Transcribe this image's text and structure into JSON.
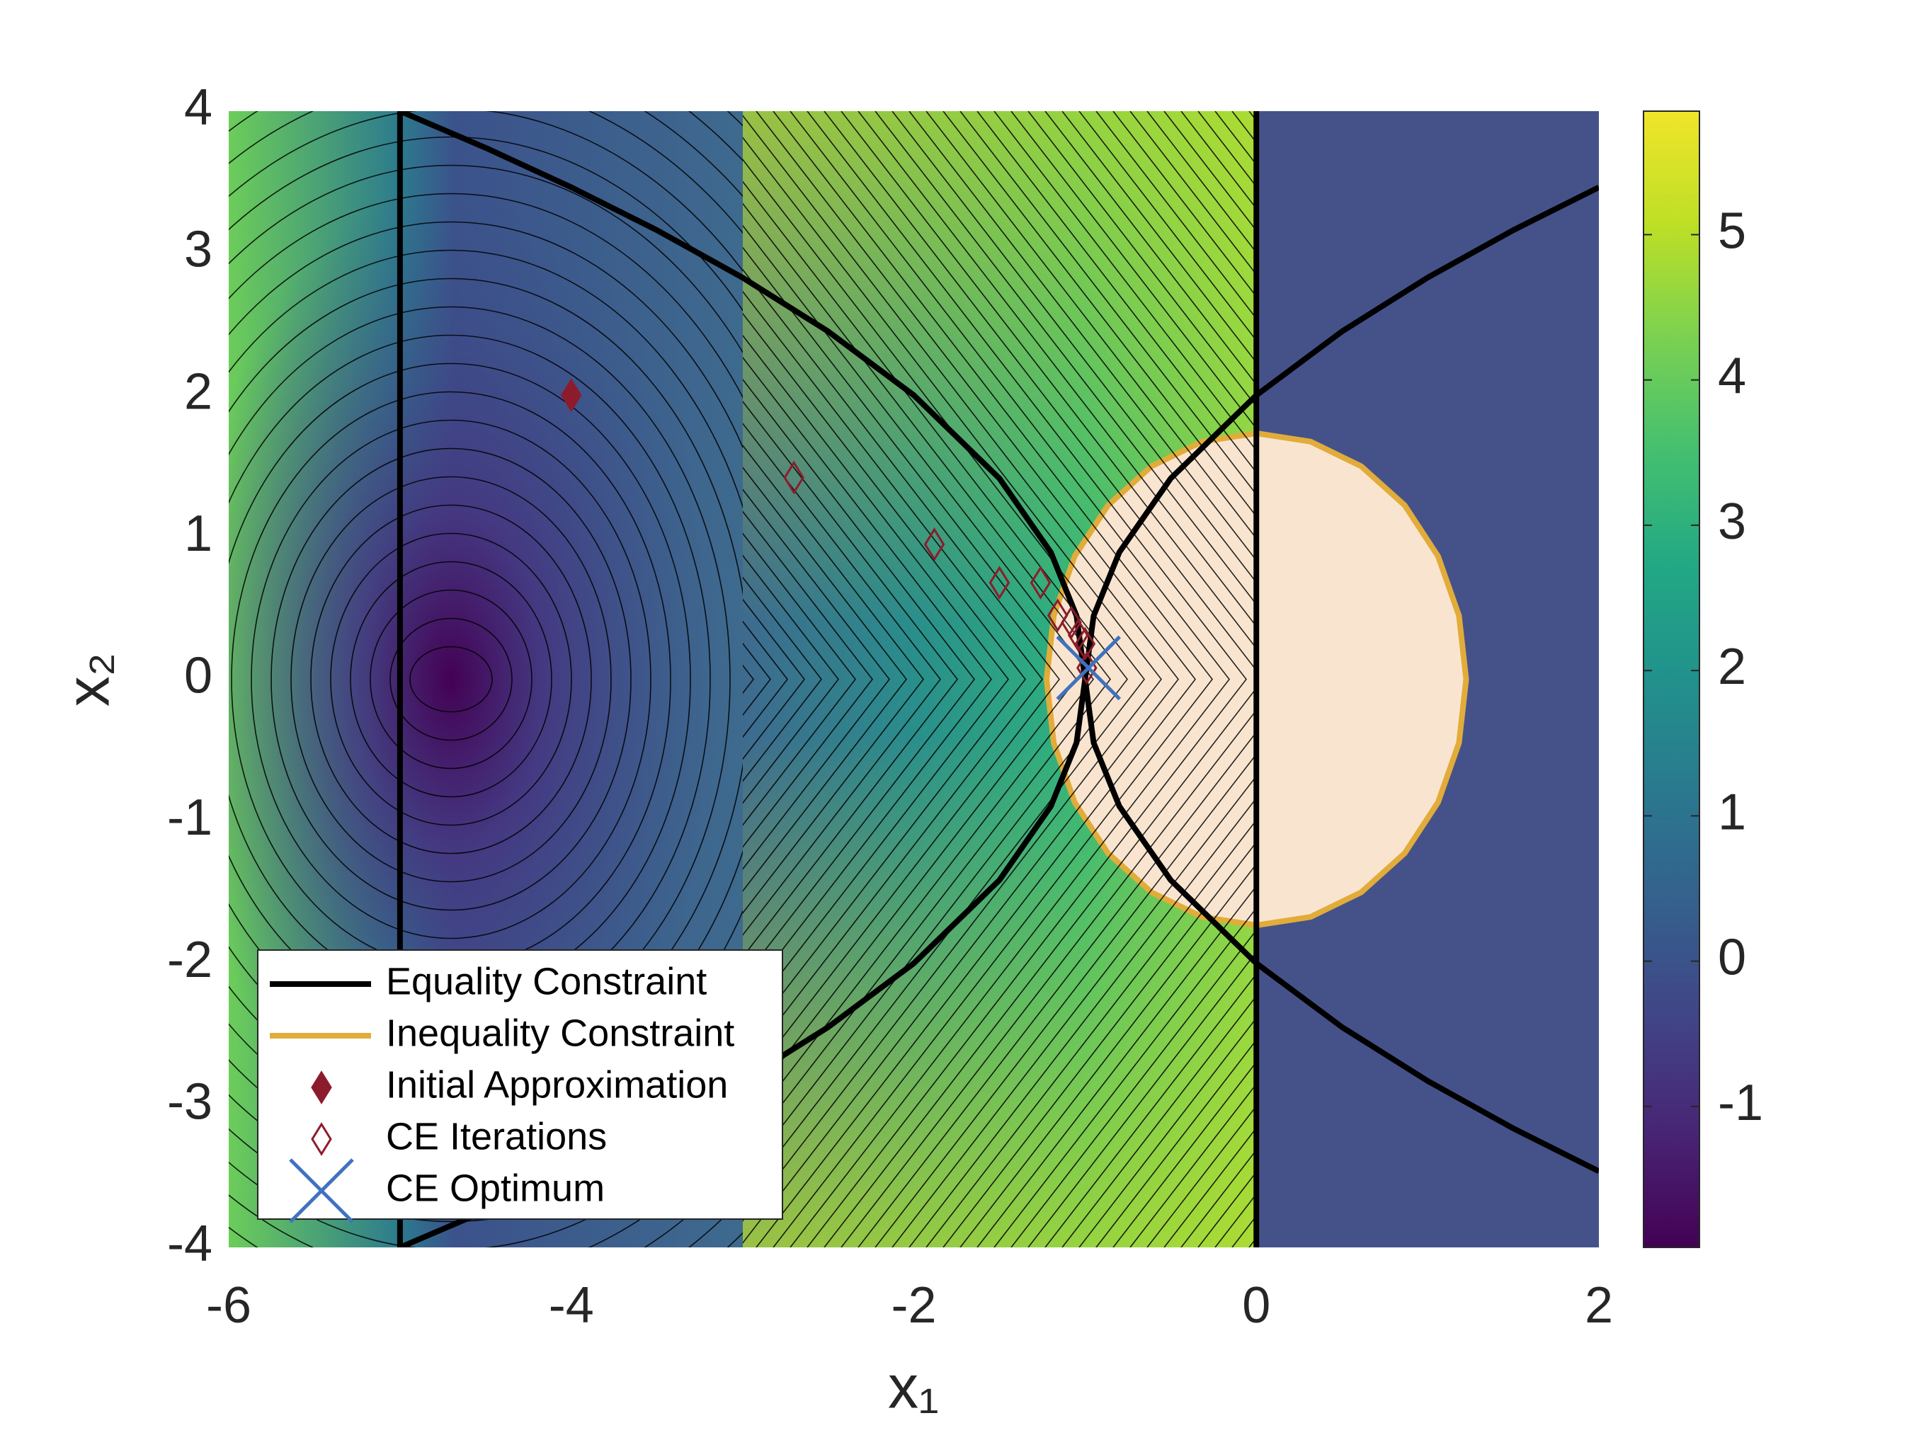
{
  "chart_data": {
    "type": "contour",
    "xlabel": "x₁",
    "ylabel": "x₂",
    "xlim": [
      -6,
      2
    ],
    "ylim": [
      -4,
      4
    ],
    "xticks": [
      -6,
      -4,
      -2,
      0,
      2
    ],
    "yticks": [
      -4,
      -3,
      -2,
      -1,
      0,
      1,
      2,
      3,
      4
    ],
    "clim": [
      -1.97,
      5.85
    ],
    "cticks": [
      -1,
      0,
      1,
      2,
      3,
      4,
      5
    ],
    "legend": "lower left",
    "series": [
      {
        "name": "Equality Constraint",
        "type": "line",
        "color": "#000000",
        "x": [
          -5,
          -5,
          null,
          0,
          0,
          null,
          -5,
          -4.5,
          -4,
          -3.5,
          -3,
          -2.5,
          -2,
          -1.5,
          -1.2,
          -1.05,
          -1,
          -0.95,
          -0.8,
          -0.5,
          0,
          0.5,
          1,
          1.5,
          2,
          null,
          -5,
          -4.5,
          -4,
          -3.5,
          -3,
          -2.5,
          -2,
          -1.5,
          -1.2,
          -1.05,
          -1,
          -0.95,
          -0.8,
          -0.5,
          0,
          0.5,
          1,
          1.5,
          2
        ],
        "y": [
          4,
          -4,
          null,
          4,
          -4,
          null,
          -4,
          -3.742,
          -3.464,
          -3.162,
          -2.828,
          -2.449,
          -2,
          -1.414,
          -0.894,
          -0.447,
          0,
          0.447,
          0.894,
          1.414,
          2,
          2.449,
          2.828,
          3.162,
          3.464,
          null,
          4,
          3.742,
          3.464,
          3.162,
          2.828,
          2.449,
          2,
          1.414,
          0.894,
          0.447,
          0,
          -0.447,
          -0.894,
          -1.414,
          -2,
          -2.449,
          -2.828,
          -3.162,
          -3.464
        ]
      },
      {
        "name": "Inequality Constraint",
        "type": "region",
        "color": "#e2ac3a",
        "fill": "#f9e5cf",
        "x": [
          1.225,
          1.183,
          1.061,
          0.866,
          0.612,
          0.317,
          0,
          -0.317,
          -0.612,
          -0.866,
          -1.061,
          -1.183,
          -1.225,
          -1.183,
          -1.061,
          -0.866,
          -0.612,
          -0.317,
          0,
          0.317,
          0.612,
          0.866,
          1.061,
          1.183
        ],
        "y": [
          0,
          0.448,
          0.866,
          1.225,
          1.5,
          1.673,
          1.732,
          1.673,
          1.5,
          1.225,
          0.866,
          0.448,
          0,
          -0.448,
          -0.866,
          -1.225,
          -1.5,
          -1.673,
          -1.732,
          -1.673,
          -1.5,
          -1.225,
          -0.866,
          -0.448
        ]
      },
      {
        "name": "Initial Approximation",
        "type": "scatter",
        "marker": "filled-diamond",
        "color": "#8c1c2c",
        "x": [
          -4
        ],
        "y": [
          2
        ]
      },
      {
        "name": "CE Iterations",
        "type": "scatter",
        "marker": "open-diamond",
        "color": "#8c1c2c",
        "x": [
          -2.7,
          -1.88,
          -1.5,
          -1.26,
          -1.16,
          -1.08,
          -1.04,
          -1.0,
          -0.99
        ],
        "y": [
          1.42,
          0.95,
          0.68,
          0.68,
          0.45,
          0.4,
          0.31,
          0.25,
          0.08
        ]
      },
      {
        "name": "CE Optimum",
        "type": "scatter",
        "marker": "x",
        "color": "#3f72bf",
        "x": [
          -0.98
        ],
        "y": [
          0.08
        ]
      }
    ]
  }
}
